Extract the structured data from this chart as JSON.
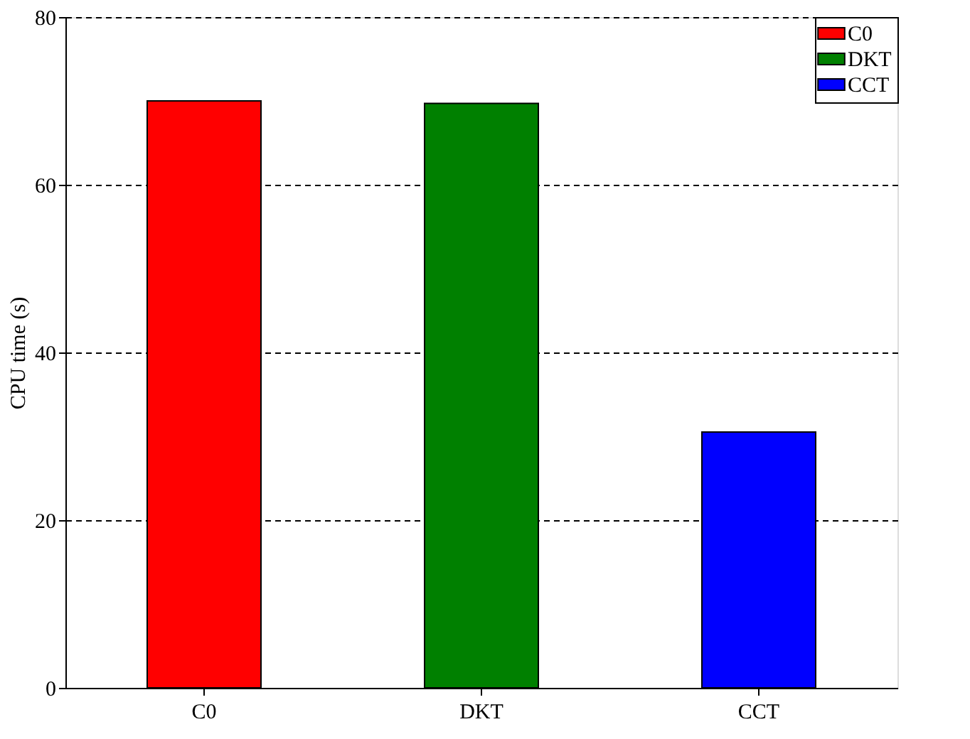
{
  "chart_data": {
    "type": "bar",
    "ylabel": "CPU time (s)",
    "categories": [
      "C0",
      "DKT",
      "CCT"
    ],
    "series": [
      {
        "name": "C0",
        "color": "#ff0000",
        "values": [
          70.0,
          null,
          null
        ]
      },
      {
        "name": "DKT",
        "color": "#008000",
        "values": [
          null,
          69.7,
          null
        ]
      },
      {
        "name": "CCT",
        "color": "#0000ff",
        "values": [
          null,
          null,
          30.5
        ]
      }
    ],
    "ylim": [
      0,
      80
    ],
    "yticks": [
      0,
      20,
      40,
      60,
      80
    ],
    "grid": "y",
    "legend": "top right"
  }
}
